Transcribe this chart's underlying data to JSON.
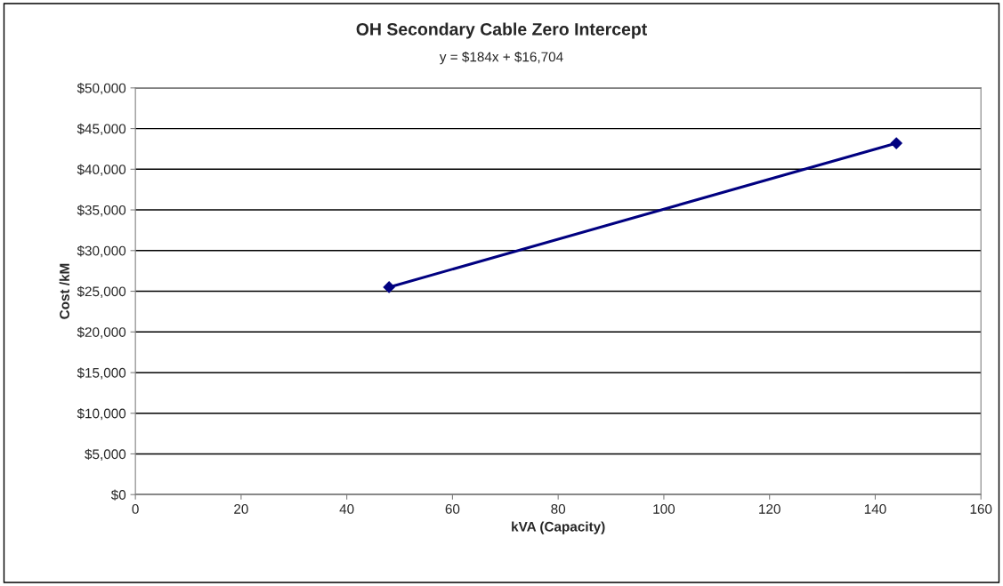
{
  "chart_data": {
    "type": "line",
    "title": "OH Secondary Cable Zero Intercept",
    "subtitle": "y = $184x + $16,704",
    "xlabel": "kVA (Capacity)",
    "ylabel": "Cost /kM",
    "series": [
      {
        "color": "#000080",
        "marker": "diamond",
        "line_style": "solid",
        "x": [
          48,
          144
        ],
        "values": [
          25500,
          43200
        ]
      }
    ],
    "xlim": [
      0,
      160
    ],
    "xticks": [
      0,
      20,
      40,
      60,
      80,
      100,
      120,
      140,
      160
    ],
    "ylim": [
      0,
      50000
    ],
    "yticks": [
      {
        "value": 0,
        "label": "$0"
      },
      {
        "value": 5000,
        "label": "$5,000"
      },
      {
        "value": 10000,
        "label": "$10,000"
      },
      {
        "value": 15000,
        "label": "$15,000"
      },
      {
        "value": 20000,
        "label": "$20,000"
      },
      {
        "value": 25000,
        "label": "$25,000"
      },
      {
        "value": 30000,
        "label": "$30,000"
      },
      {
        "value": 35000,
        "label": "$35,000"
      },
      {
        "value": 40000,
        "label": "$40,000"
      },
      {
        "value": 45000,
        "label": "$45,000"
      },
      {
        "value": 50000,
        "label": "$50,000"
      }
    ],
    "grid": "y"
  }
}
